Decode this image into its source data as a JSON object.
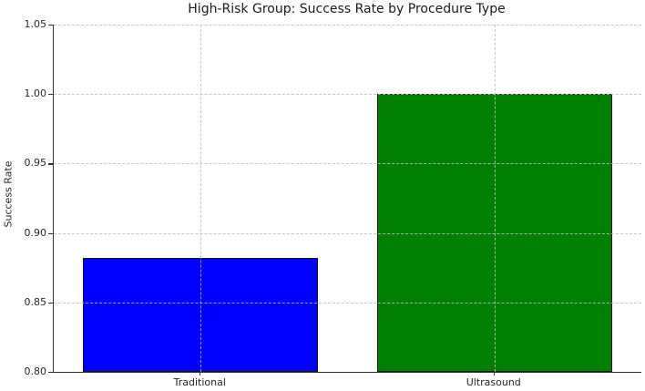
{
  "chart_data": {
    "type": "bar",
    "title": "High-Risk Group: Success Rate by Procedure Type",
    "xlabel": "",
    "ylabel": "Success Rate",
    "categories": [
      "Traditional",
      "Ultrasound"
    ],
    "values": [
      0.882,
      1.0
    ],
    "bar_colors": [
      "#0000ff",
      "#008000"
    ],
    "bar_edge_color": "#141414",
    "ylim": [
      0.8,
      1.05
    ],
    "yticks": [
      0.8,
      0.85,
      0.9,
      0.95,
      1.0,
      1.05
    ],
    "ytick_labels": [
      "0.80",
      "0.85",
      "0.90",
      "0.95",
      "1.00",
      "1.05"
    ],
    "grid": "both-dashed",
    "grid_color": "#bebebe",
    "bar_width_fraction": 0.8,
    "legend": null
  }
}
